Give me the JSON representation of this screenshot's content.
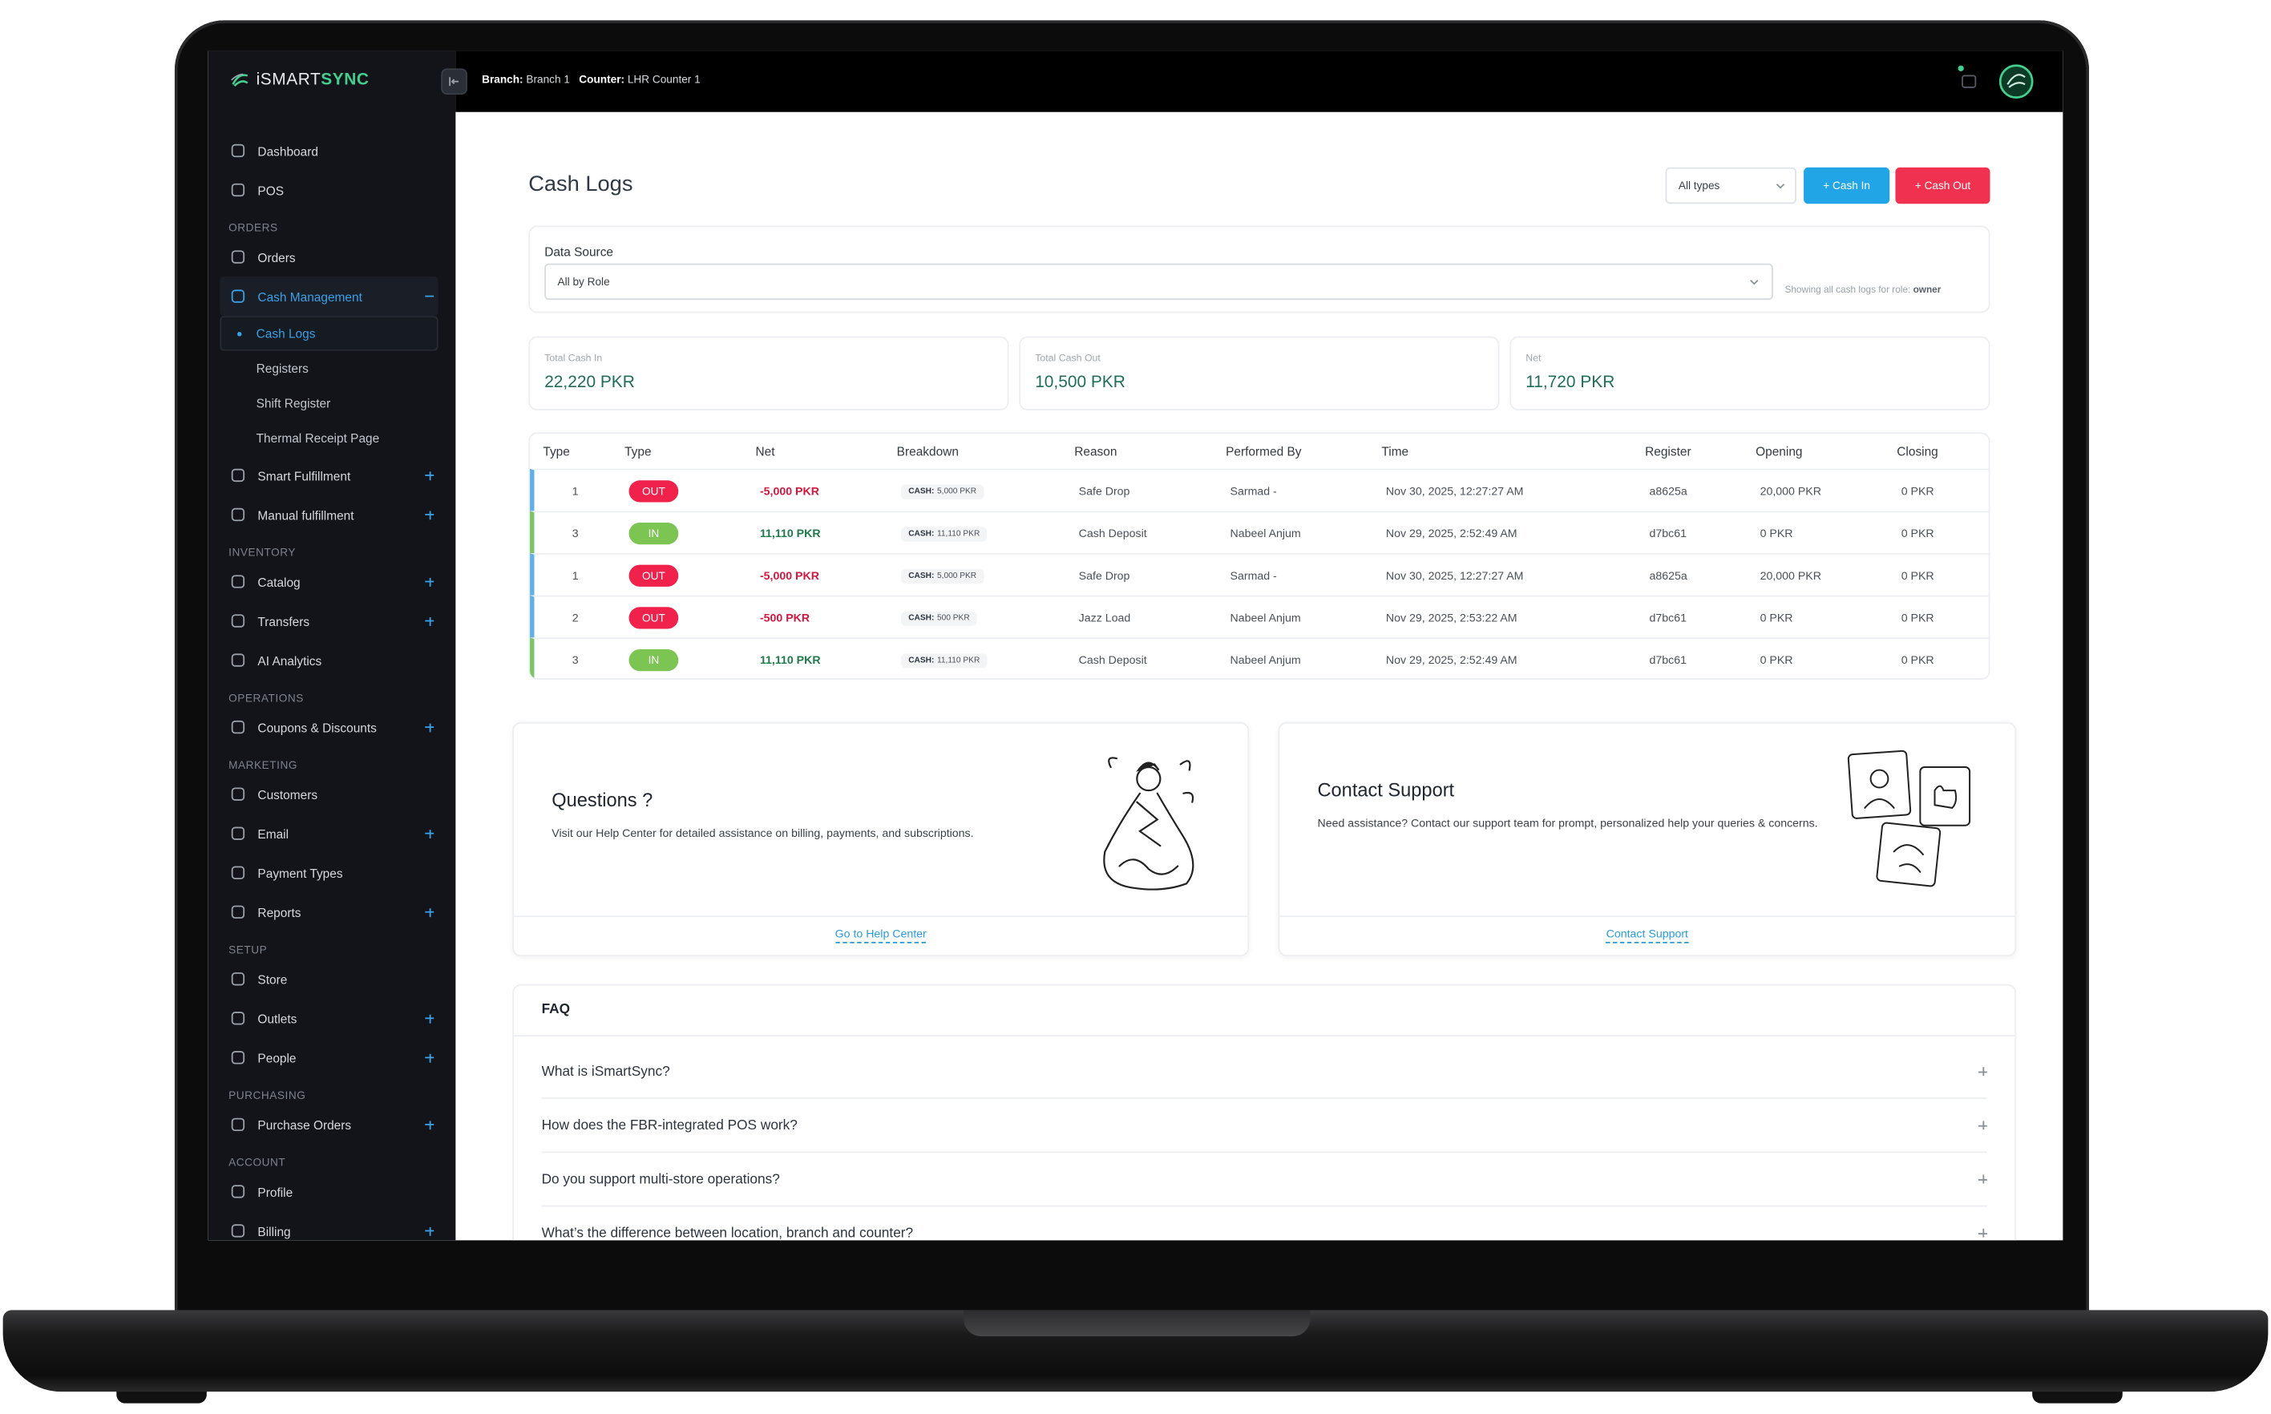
{
  "brand": {
    "prefix": "iSMART",
    "suffix": "SYNC"
  },
  "topbar": {
    "branch_label": "Branch:",
    "branch": "Branch 1",
    "counter_label": "Counter:",
    "counter": "LHR Counter 1"
  },
  "sidebar": {
    "groups": [
      {
        "items": [
          {
            "label": "Dashboard"
          },
          {
            "label": "POS"
          }
        ]
      },
      {
        "heading": "ORDERS",
        "items": [
          {
            "label": "Orders"
          },
          {
            "label": "Cash Management",
            "active": true,
            "children": [
              {
                "label": "Cash Logs",
                "active": true
              },
              {
                "label": "Registers"
              },
              {
                "label": "Shift Register"
              },
              {
                "label": "Thermal Receipt Page"
              }
            ]
          },
          {
            "label": "Smart Fulfillment",
            "expandable": true
          },
          {
            "label": "Manual fulfillment",
            "expandable": true
          }
        ]
      },
      {
        "heading": "INVENTORY",
        "items": [
          {
            "label": "Catalog",
            "expandable": true
          },
          {
            "label": "Transfers",
            "expandable": true
          },
          {
            "label": "AI Analytics"
          }
        ]
      },
      {
        "heading": "OPERATIONS",
        "items": [
          {
            "label": "Coupons & Discounts",
            "expandable": true
          }
        ]
      },
      {
        "heading": "MARKETING",
        "items": [
          {
            "label": "Customers"
          },
          {
            "label": "Email",
            "expandable": true
          },
          {
            "label": "Payment Types"
          },
          {
            "label": "Reports",
            "expandable": true
          }
        ]
      },
      {
        "heading": "SETUP",
        "items": [
          {
            "label": "Store"
          },
          {
            "label": "Outlets",
            "expandable": true
          },
          {
            "label": "People",
            "expandable": true
          }
        ]
      },
      {
        "heading": "PURCHASING",
        "items": [
          {
            "label": "Purchase Orders",
            "expandable": true
          }
        ]
      },
      {
        "heading": "ACCOUNT",
        "items": [
          {
            "label": "Profile"
          },
          {
            "label": "Billing",
            "expandable": true
          }
        ]
      }
    ]
  },
  "page": {
    "title": "Cash Logs",
    "type_filter": "All types",
    "cash_in_button": "+ Cash In",
    "cash_out_button": "+ Cash Out"
  },
  "data_source": {
    "label": "Data Source",
    "value": "All by Role",
    "hint": "Showing all cash logs for role:",
    "role": "owner"
  },
  "stats": [
    {
      "label": "Total Cash In",
      "value": "22,220 PKR"
    },
    {
      "label": "Total Cash Out",
      "value": "10,500 PKR"
    },
    {
      "label": "Net",
      "value": "11,720 PKR"
    }
  ],
  "table": {
    "columns": [
      "Type",
      "Type",
      "Net",
      "Breakdown",
      "Reason",
      "Performed By",
      "Time",
      "Register",
      "Opening",
      "Closing"
    ],
    "direction_styles": {
      "OUT": {
        "badge": "#f0214a",
        "net": "#d3173f",
        "accent": "#5fb0e6"
      },
      "IN": {
        "badge": "#7cc553",
        "net": "#1f7a4a",
        "accent": "#7cc36a"
      }
    },
    "rows": [
      {
        "type": 1,
        "direction": "OUT",
        "net": "-5,000 PKR",
        "breakdown": {
          "label": "CASH:",
          "amount": "5,000 PKR"
        },
        "reason": "Safe Drop",
        "performed_by": "Sarmad -",
        "time": "Nov 30, 2025, 12:27:27 AM",
        "register": "a8625a",
        "opening": "20,000 PKR",
        "closing": "0 PKR"
      },
      {
        "type": 3,
        "direction": "IN",
        "net": "11,110 PKR",
        "breakdown": {
          "label": "CASH:",
          "amount": "11,110 PKR"
        },
        "reason": "Cash Deposit",
        "performed_by": "Nabeel Anjum",
        "time": "Nov 29, 2025, 2:52:49 AM",
        "register": "d7bc61",
        "opening": "0 PKR",
        "closing": "0 PKR"
      },
      {
        "type": 1,
        "direction": "OUT",
        "net": "-5,000 PKR",
        "breakdown": {
          "label": "CASH:",
          "amount": "5,000 PKR"
        },
        "reason": "Safe Drop",
        "performed_by": "Sarmad -",
        "time": "Nov 30, 2025, 12:27:27 AM",
        "register": "a8625a",
        "opening": "20,000 PKR",
        "closing": "0 PKR"
      },
      {
        "type": 2,
        "direction": "OUT",
        "net": "-500 PKR",
        "breakdown": {
          "label": "CASH:",
          "amount": "500 PKR"
        },
        "reason": "Jazz Load",
        "performed_by": "Nabeel Anjum",
        "time": "Nov 29, 2025, 2:53:22 AM",
        "register": "d7bc61",
        "opening": "0 PKR",
        "closing": "0 PKR"
      },
      {
        "type": 3,
        "direction": "IN",
        "net": "11,110 PKR",
        "breakdown": {
          "label": "CASH:",
          "amount": "11,110 PKR"
        },
        "reason": "Cash Deposit",
        "performed_by": "Nabeel Anjum",
        "time": "Nov 29, 2025, 2:52:49 AM",
        "register": "d7bc61",
        "opening": "0 PKR",
        "closing": "0 PKR"
      }
    ]
  },
  "help": {
    "questions": {
      "title": "Questions ?",
      "text": "Visit our Help Center for detailed assistance on billing, payments, and subscriptions.",
      "link": "Go to Help Center"
    },
    "support": {
      "title": "Contact Support",
      "text": "Need assistance? Contact our support team for prompt, personalized help your queries & concerns.",
      "link": "Contact Support"
    }
  },
  "faq": {
    "title": "FAQ",
    "questions": [
      "What is iSmartSync?",
      "How does the FBR-integrated POS work?",
      "Do you support multi-store operations?",
      "What’s the difference between location, branch and counter?"
    ]
  }
}
